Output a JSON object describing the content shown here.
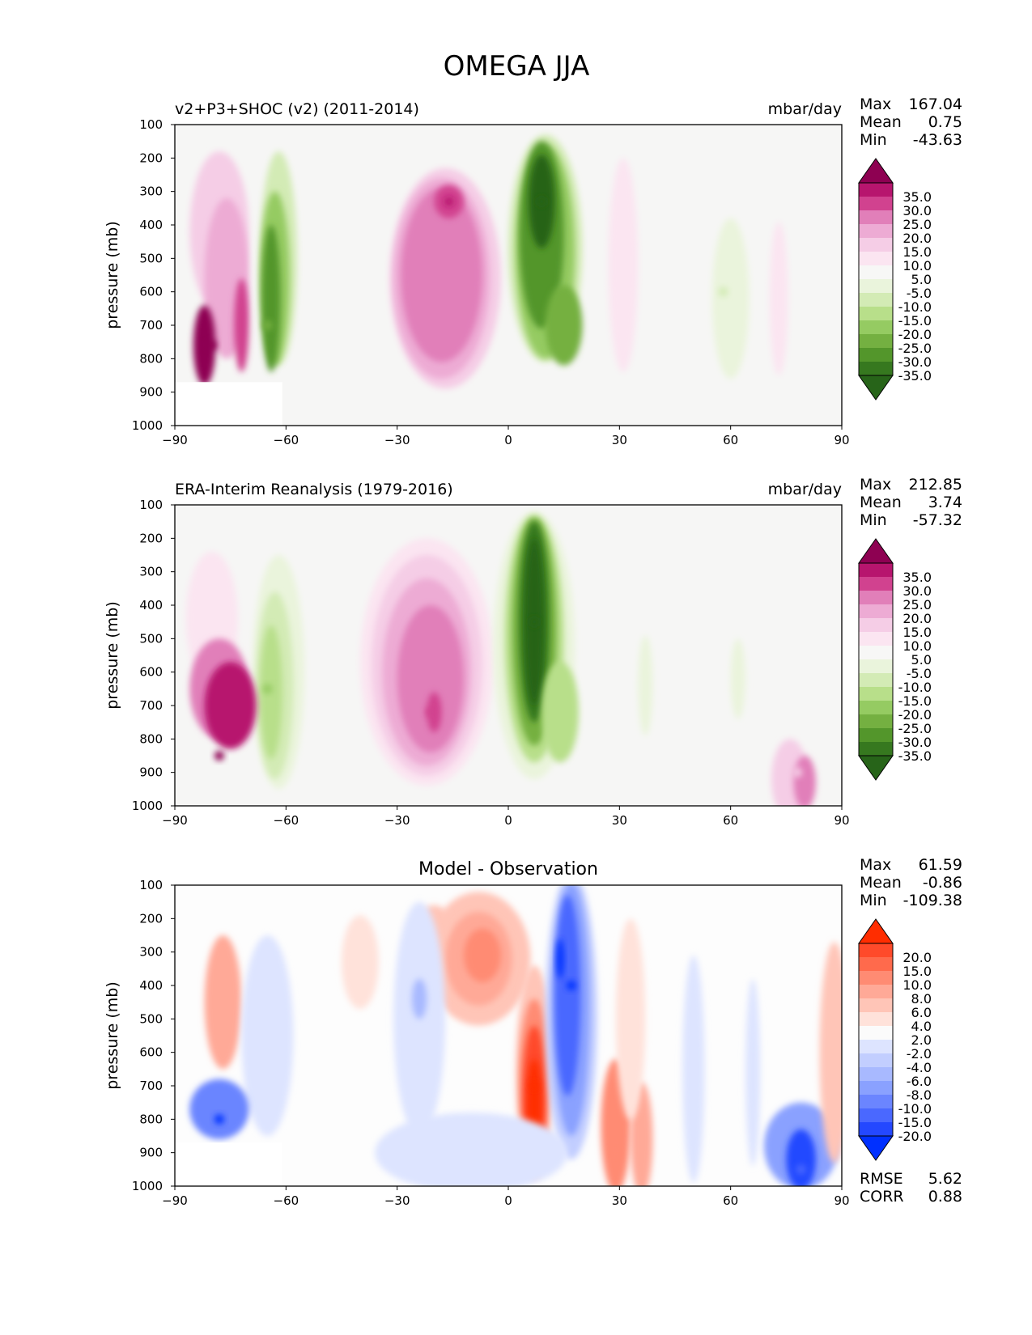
{
  "figure_title": "OMEGA JJA",
  "chart_data": [
    {
      "type": "heatmap",
      "title": "v2+P3+SHOC (v2) (2011-2014)",
      "units": "mbar/day",
      "stats": {
        "max_label": "Max",
        "max": "167.04",
        "mean_label": "Mean",
        "mean": "0.75",
        "min_label": "Min",
        "min": "-43.63"
      },
      "xlim": [
        -90,
        90
      ],
      "ylim": [
        1000,
        100
      ],
      "xticks": [
        "−90",
        "−60",
        "−30",
        "0",
        "30",
        "60",
        "90"
      ],
      "yticks": [
        "100",
        "200",
        "300",
        "400",
        "500",
        "600",
        "700",
        "800",
        "900",
        "1000"
      ],
      "ylabel": "pressure (mb)",
      "colorbar": {
        "labels": [
          "35.0",
          "30.0",
          "25.0",
          "20.0",
          "15.0",
          "10.0",
          "5.0",
          "-5.0",
          "-10.0",
          "-15.0",
          "-20.0",
          "-25.0",
          "-30.0",
          "-35.0"
        ],
        "colors": [
          "#8e0152",
          "#b7156e",
          "#d1428f",
          "#e17fb9",
          "#edabd4",
          "#f5cde6",
          "#fbe5f1",
          "#f7f7f6",
          "#eaf4dc",
          "#d3ebb5",
          "#b8df8a",
          "#95cb62",
          "#74b041",
          "#53962b",
          "#36781f",
          "#276419"
        ]
      },
      "features": [
        {
          "lat": 9,
          "p": 330,
          "value": -43.6
        },
        {
          "lat": -16,
          "p": 330,
          "value": 31
        },
        {
          "lat": -80,
          "p": 760,
          "value": 167.04
        },
        {
          "lat": -65,
          "p": 700,
          "value": -22
        },
        {
          "lat": 58,
          "p": 600,
          "value": -7
        }
      ]
    },
    {
      "type": "heatmap",
      "title": "ERA-Interim Reanalysis (1979-2016)",
      "units": "mbar/day",
      "stats": {
        "max_label": "Max",
        "max": "212.85",
        "mean_label": "Mean",
        "mean": "3.74",
        "min_label": "Min",
        "min": "-57.32"
      },
      "xlim": [
        -90,
        90
      ],
      "ylim": [
        1000,
        100
      ],
      "xticks": [
        "−90",
        "−60",
        "−30",
        "0",
        "30",
        "60",
        "90"
      ],
      "yticks": [
        "100",
        "200",
        "300",
        "400",
        "500",
        "600",
        "700",
        "800",
        "900",
        "1000"
      ],
      "ylabel": "pressure (mb)",
      "colorbar": {
        "labels": [
          "35.0",
          "30.0",
          "25.0",
          "20.0",
          "15.0",
          "10.0",
          "5.0",
          "-5.0",
          "-10.0",
          "-15.0",
          "-20.0",
          "-25.0",
          "-30.0",
          "-35.0"
        ],
        "colors": [
          "#8e0152",
          "#b7156e",
          "#d1428f",
          "#e17fb9",
          "#edabd4",
          "#f5cde6",
          "#fbe5f1",
          "#f7f7f6",
          "#eaf4dc",
          "#d3ebb5",
          "#b8df8a",
          "#95cb62",
          "#74b041",
          "#53962b",
          "#36781f",
          "#276419"
        ]
      },
      "features": [
        {
          "lat": 7,
          "p": 450,
          "value": -57.3
        },
        {
          "lat": -21,
          "p": 720,
          "value": 26
        },
        {
          "lat": -78,
          "p": 850,
          "value": 212.85
        },
        {
          "lat": -65,
          "p": 650,
          "value": -16
        },
        {
          "lat": 78,
          "p": 900,
          "value": 12
        }
      ]
    },
    {
      "type": "heatmap",
      "title": "Model - Observation",
      "units": "",
      "stats": {
        "max_label": "Max",
        "max": "61.59",
        "mean_label": "Mean",
        "mean": "-0.86",
        "min_label": "Min",
        "min": "-109.38"
      },
      "extra_stats": {
        "rmse_label": "RMSE",
        "rmse": "5.62",
        "corr_label": "CORR",
        "corr": "0.88"
      },
      "xlim": [
        -90,
        90
      ],
      "ylim": [
        1000,
        100
      ],
      "xticks": [
        "−90",
        "−60",
        "−30",
        "0",
        "30",
        "60",
        "90"
      ],
      "yticks": [
        "100",
        "200",
        "300",
        "400",
        "500",
        "600",
        "700",
        "800",
        "900",
        "1000"
      ],
      "ylabel": "pressure (mb)",
      "colorbar": {
        "labels": [
          "20.0",
          "15.0",
          "10.0",
          "8.0",
          "6.0",
          "4.0",
          "2.0",
          "-2.0",
          "-4.0",
          "-6.0",
          "-8.0",
          "-10.0",
          "-15.0",
          "-20.0"
        ],
        "colors": [
          "#ff2d00",
          "#ff4a2a",
          "#ff6a4c",
          "#ff8b73",
          "#ffa997",
          "#ffc5b7",
          "#ffe2da",
          "#fbfbfb",
          "#dde4ff",
          "#c2ceff",
          "#a8b9ff",
          "#8aa1ff",
          "#6b85ff",
          "#4a68ff",
          "#2448ff",
          "#0030ff"
        ]
      },
      "features": [
        {
          "lat": 7,
          "p": 700,
          "value": 20
        },
        {
          "lat": 17,
          "p": 400,
          "value": -20
        },
        {
          "lat": -78,
          "p": 800,
          "value": -109.38
        },
        {
          "lat": 29,
          "p": 900,
          "value": 12
        },
        {
          "lat": 79,
          "p": 950,
          "value": -15
        }
      ]
    }
  ]
}
